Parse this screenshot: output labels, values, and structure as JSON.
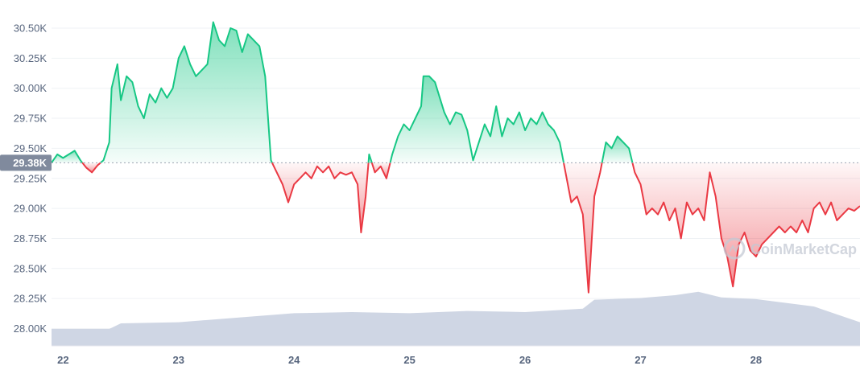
{
  "chart_data": {
    "type": "area",
    "title": "",
    "xlabel": "",
    "ylabel": "",
    "ylim": [
      27.85,
      30.6
    ],
    "y_ticks": [
      "30.50K",
      "30.25K",
      "30.00K",
      "29.75K",
      "29.50K",
      "29.25K",
      "29.00K",
      "28.75K",
      "28.50K",
      "28.25K",
      "28.00K"
    ],
    "y_tick_values": [
      30.5,
      30.25,
      30.0,
      29.75,
      29.5,
      29.25,
      29.0,
      28.75,
      28.5,
      28.25,
      28.0
    ],
    "x_ticks": [
      "22",
      "23",
      "24",
      "25",
      "26",
      "27",
      "28"
    ],
    "x_tick_values": [
      22,
      23,
      24,
      25,
      26,
      27,
      28
    ],
    "xlim": [
      21.9,
      28.9
    ],
    "reference_value": 29.38,
    "reference_label": "29.38K",
    "grid": true,
    "colors": {
      "above": "#16c784",
      "below": "#ea3943",
      "volume": "#cfd6e4",
      "reference_badge": "#808a9d",
      "grid": "#eff2f5"
    },
    "watermark": "CoinMarketCap",
    "price_series": [
      [
        21.9,
        29.38
      ],
      [
        21.95,
        29.45
      ],
      [
        22.0,
        29.42
      ],
      [
        22.1,
        29.48
      ],
      [
        22.15,
        29.4
      ],
      [
        22.2,
        29.34
      ],
      [
        22.25,
        29.3
      ],
      [
        22.3,
        29.36
      ],
      [
        22.35,
        29.4
      ],
      [
        22.4,
        29.55
      ],
      [
        22.42,
        30.0
      ],
      [
        22.47,
        30.2
      ],
      [
        22.5,
        29.9
      ],
      [
        22.55,
        30.1
      ],
      [
        22.6,
        30.05
      ],
      [
        22.65,
        29.85
      ],
      [
        22.7,
        29.75
      ],
      [
        22.75,
        29.95
      ],
      [
        22.8,
        29.88
      ],
      [
        22.85,
        30.0
      ],
      [
        22.9,
        29.92
      ],
      [
        22.95,
        30.0
      ],
      [
        23.0,
        30.25
      ],
      [
        23.05,
        30.35
      ],
      [
        23.1,
        30.2
      ],
      [
        23.15,
        30.1
      ],
      [
        23.2,
        30.15
      ],
      [
        23.25,
        30.2
      ],
      [
        23.3,
        30.55
      ],
      [
        23.35,
        30.4
      ],
      [
        23.4,
        30.35
      ],
      [
        23.45,
        30.5
      ],
      [
        23.5,
        30.48
      ],
      [
        23.55,
        30.3
      ],
      [
        23.6,
        30.45
      ],
      [
        23.65,
        30.4
      ],
      [
        23.7,
        30.35
      ],
      [
        23.75,
        30.1
      ],
      [
        23.8,
        29.4
      ],
      [
        23.85,
        29.3
      ],
      [
        23.9,
        29.2
      ],
      [
        23.95,
        29.05
      ],
      [
        24.0,
        29.2
      ],
      [
        24.05,
        29.25
      ],
      [
        24.1,
        29.3
      ],
      [
        24.15,
        29.25
      ],
      [
        24.2,
        29.35
      ],
      [
        24.25,
        29.3
      ],
      [
        24.3,
        29.35
      ],
      [
        24.35,
        29.25
      ],
      [
        24.4,
        29.3
      ],
      [
        24.45,
        29.28
      ],
      [
        24.5,
        29.3
      ],
      [
        24.55,
        29.2
      ],
      [
        24.58,
        28.8
      ],
      [
        24.62,
        29.1
      ],
      [
        24.65,
        29.45
      ],
      [
        24.7,
        29.3
      ],
      [
        24.75,
        29.35
      ],
      [
        24.8,
        29.25
      ],
      [
        24.85,
        29.45
      ],
      [
        24.9,
        29.6
      ],
      [
        24.95,
        29.7
      ],
      [
        25.0,
        29.65
      ],
      [
        25.05,
        29.75
      ],
      [
        25.1,
        29.85
      ],
      [
        25.12,
        30.1
      ],
      [
        25.17,
        30.1
      ],
      [
        25.22,
        30.05
      ],
      [
        25.3,
        29.8
      ],
      [
        25.35,
        29.7
      ],
      [
        25.4,
        29.8
      ],
      [
        25.45,
        29.78
      ],
      [
        25.5,
        29.65
      ],
      [
        25.55,
        29.4
      ],
      [
        25.6,
        29.55
      ],
      [
        25.65,
        29.7
      ],
      [
        25.7,
        29.6
      ],
      [
        25.75,
        29.85
      ],
      [
        25.8,
        29.6
      ],
      [
        25.85,
        29.75
      ],
      [
        25.9,
        29.7
      ],
      [
        25.95,
        29.8
      ],
      [
        26.0,
        29.65
      ],
      [
        26.05,
        29.75
      ],
      [
        26.1,
        29.7
      ],
      [
        26.15,
        29.8
      ],
      [
        26.2,
        29.7
      ],
      [
        26.25,
        29.65
      ],
      [
        26.3,
        29.55
      ],
      [
        26.35,
        29.3
      ],
      [
        26.4,
        29.05
      ],
      [
        26.45,
        29.1
      ],
      [
        26.5,
        28.95
      ],
      [
        26.55,
        28.3
      ],
      [
        26.6,
        29.1
      ],
      [
        26.65,
        29.3
      ],
      [
        26.7,
        29.55
      ],
      [
        26.75,
        29.5
      ],
      [
        26.8,
        29.6
      ],
      [
        26.85,
        29.55
      ],
      [
        26.9,
        29.5
      ],
      [
        26.95,
        29.3
      ],
      [
        27.0,
        29.2
      ],
      [
        27.05,
        28.95
      ],
      [
        27.1,
        29.0
      ],
      [
        27.15,
        28.95
      ],
      [
        27.2,
        29.05
      ],
      [
        27.25,
        28.9
      ],
      [
        27.3,
        29.0
      ],
      [
        27.35,
        28.75
      ],
      [
        27.4,
        29.05
      ],
      [
        27.45,
        28.95
      ],
      [
        27.5,
        29.0
      ],
      [
        27.55,
        28.9
      ],
      [
        27.6,
        29.3
      ],
      [
        27.65,
        29.1
      ],
      [
        27.7,
        28.75
      ],
      [
        27.75,
        28.6
      ],
      [
        27.8,
        28.35
      ],
      [
        27.85,
        28.7
      ],
      [
        27.9,
        28.8
      ],
      [
        27.95,
        28.65
      ],
      [
        28.0,
        28.6
      ],
      [
        28.05,
        28.7
      ],
      [
        28.1,
        28.75
      ],
      [
        28.15,
        28.8
      ],
      [
        28.2,
        28.85
      ],
      [
        28.25,
        28.8
      ],
      [
        28.3,
        28.85
      ],
      [
        28.35,
        28.8
      ],
      [
        28.4,
        28.9
      ],
      [
        28.45,
        28.8
      ],
      [
        28.5,
        29.0
      ],
      [
        28.55,
        29.05
      ],
      [
        28.6,
        28.95
      ],
      [
        28.65,
        29.05
      ],
      [
        28.7,
        28.9
      ],
      [
        28.75,
        28.95
      ],
      [
        28.8,
        29.0
      ],
      [
        28.85,
        28.98
      ],
      [
        28.9,
        29.02
      ]
    ],
    "volume_series": [
      [
        21.9,
        0.3
      ],
      [
        22.4,
        0.3
      ],
      [
        22.5,
        0.4
      ],
      [
        23.0,
        0.42
      ],
      [
        23.5,
        0.5
      ],
      [
        24.0,
        0.58
      ],
      [
        24.5,
        0.6
      ],
      [
        25.0,
        0.58
      ],
      [
        25.5,
        0.62
      ],
      [
        26.0,
        0.6
      ],
      [
        26.5,
        0.66
      ],
      [
        26.6,
        0.82
      ],
      [
        27.0,
        0.85
      ],
      [
        27.3,
        0.9
      ],
      [
        27.5,
        0.96
      ],
      [
        27.7,
        0.86
      ],
      [
        28.0,
        0.83
      ],
      [
        28.5,
        0.7
      ],
      [
        28.9,
        0.42
      ]
    ]
  }
}
